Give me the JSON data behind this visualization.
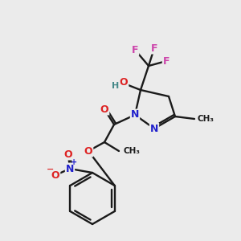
{
  "background_color": "#ebebeb",
  "bond_color": "#1a1a1a",
  "atom_colors": {
    "F": "#cc44aa",
    "O": "#dd2222",
    "N": "#2222cc",
    "H": "#448888",
    "C": "#1a1a1a"
  },
  "figsize": [
    3.0,
    3.0
  ],
  "dpi": 100
}
